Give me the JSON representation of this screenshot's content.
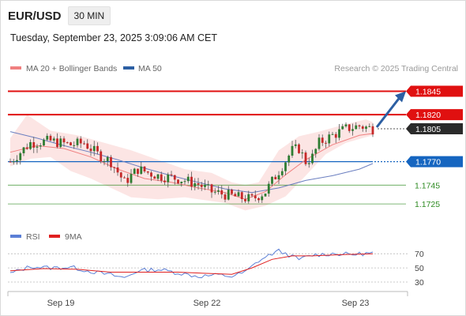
{
  "header": {
    "symbol": "EUR/USD",
    "timeframe": "30 MIN",
    "datetime": "Tuesday, September 23, 2025 3:09:06 AM CET"
  },
  "legend": {
    "ma20_label": "MA 20 + Bollinger Bands",
    "ma20_color": "#f08080",
    "ma50_label": "MA 50",
    "ma50_color": "#2c5fa3",
    "source": "Research © 2025 Trading Central"
  },
  "rsi_legend": {
    "rsi_label": "RSI",
    "rsi_color": "#5b7fd6",
    "ma9_label": "9MA",
    "ma9_color": "#e02020"
  },
  "x_axis": {
    "labels": [
      "Sep 19",
      "Sep 22",
      "Sep 23"
    ]
  },
  "chart_data": {
    "type": "candlestick",
    "price_range": [
      1.1715,
      1.1858
    ],
    "rsi_range": [
      20,
      78
    ],
    "levels": [
      {
        "value": 1.1845,
        "label": "1.1845",
        "kind": "resistance",
        "style": "red-thick",
        "color": "#e01010"
      },
      {
        "value": 1.182,
        "label": "1.1820",
        "kind": "resistance",
        "style": "red-thick",
        "color": "#e01010"
      },
      {
        "value": 1.1805,
        "label": "1.1805",
        "kind": "last",
        "style": "dotted",
        "color": "#222222"
      },
      {
        "value": 1.177,
        "label": "1.1770",
        "kind": "pivot",
        "style": "blue",
        "color": "#1565c0"
      },
      {
        "value": 1.1745,
        "label": "1.1745",
        "kind": "support",
        "style": "green-thin",
        "color": "#2e8b22"
      },
      {
        "value": 1.1725,
        "label": "1.1725",
        "kind": "support",
        "style": "green-thin",
        "color": "#2e8b22"
      }
    ],
    "rsi_levels": [
      70,
      50,
      30
    ],
    "arrow": {
      "from": 1.1805,
      "to": 1.1845,
      "color": "#2c5fa3"
    },
    "anchors": [
      [
        0,
        1.177
      ],
      [
        6,
        1.179
      ],
      [
        12,
        1.1792
      ],
      [
        18,
        1.1788
      ],
      [
        22,
        1.179
      ],
      [
        26,
        1.1778
      ],
      [
        30,
        1.177
      ],
      [
        34,
        1.1748
      ],
      [
        38,
        1.1762
      ],
      [
        44,
        1.1755
      ],
      [
        50,
        1.1752
      ],
      [
        56,
        1.1746
      ],
      [
        60,
        1.1738
      ],
      [
        64,
        1.1735
      ],
      [
        68,
        1.1732
      ],
      [
        72,
        1.173
      ],
      [
        76,
        1.1738
      ],
      [
        80,
        1.176
      ],
      [
        84,
        1.1782
      ],
      [
        86,
        1.1784
      ],
      [
        88,
        1.177
      ],
      [
        90,
        1.1775
      ],
      [
        92,
        1.179
      ],
      [
        96,
        1.1798
      ],
      [
        100,
        1.1805
      ],
      [
        104,
        1.1808
      ],
      [
        108,
        1.1805
      ]
    ],
    "bb_upper": [
      [
        0,
        1.1795
      ],
      [
        5,
        1.182
      ],
      [
        12,
        1.1803
      ],
      [
        20,
        1.1798
      ],
      [
        28,
        1.179
      ],
      [
        36,
        1.1782
      ],
      [
        44,
        1.1772
      ],
      [
        52,
        1.1762
      ],
      [
        60,
        1.1758
      ],
      [
        66,
        1.1748
      ],
      [
        70,
        1.1745
      ],
      [
        74,
        1.1748
      ],
      [
        80,
        1.1782
      ],
      [
        86,
        1.1797
      ],
      [
        92,
        1.1802
      ],
      [
        100,
        1.181
      ],
      [
        106,
        1.1815
      ],
      [
        108,
        1.1812
      ]
    ],
    "bb_lower": [
      [
        0,
        1.1765
      ],
      [
        6,
        1.1773
      ],
      [
        12,
        1.1775
      ],
      [
        18,
        1.176
      ],
      [
        24,
        1.1752
      ],
      [
        30,
        1.1742
      ],
      [
        36,
        1.1732
      ],
      [
        44,
        1.173
      ],
      [
        52,
        1.1732
      ],
      [
        58,
        1.1729
      ],
      [
        64,
        1.1726
      ],
      [
        70,
        1.1718
      ],
      [
        76,
        1.1723
      ],
      [
        82,
        1.1733
      ],
      [
        88,
        1.1755
      ],
      [
        94,
        1.1778
      ],
      [
        100,
        1.179
      ],
      [
        108,
        1.1798
      ]
    ],
    "ma20": [
      [
        0,
        1.178
      ],
      [
        8,
        1.1787
      ],
      [
        16,
        1.1784
      ],
      [
        24,
        1.1775
      ],
      [
        32,
        1.1762
      ],
      [
        40,
        1.1752
      ],
      [
        48,
        1.1748
      ],
      [
        56,
        1.1742
      ],
      [
        64,
        1.1737
      ],
      [
        70,
        1.173
      ],
      [
        76,
        1.1738
      ],
      [
        82,
        1.1756
      ],
      [
        88,
        1.1772
      ],
      [
        96,
        1.1788
      ],
      [
        104,
        1.1798
      ],
      [
        108,
        1.18
      ]
    ],
    "ma50": [
      [
        0,
        1.1802
      ],
      [
        8,
        1.1795
      ],
      [
        16,
        1.1787
      ],
      [
        24,
        1.178
      ],
      [
        32,
        1.1772
      ],
      [
        40,
        1.1763
      ],
      [
        48,
        1.1755
      ],
      [
        56,
        1.1748
      ],
      [
        64,
        1.1741
      ],
      [
        72,
        1.1737
      ],
      [
        80,
        1.1742
      ],
      [
        88,
        1.175
      ],
      [
        96,
        1.1755
      ],
      [
        104,
        1.1762
      ],
      [
        108,
        1.1768
      ]
    ],
    "rsi_anchors": [
      [
        0,
        42
      ],
      [
        6,
        52
      ],
      [
        12,
        50
      ],
      [
        18,
        51
      ],
      [
        24,
        45
      ],
      [
        30,
        40
      ],
      [
        34,
        36
      ],
      [
        38,
        46
      ],
      [
        44,
        48
      ],
      [
        50,
        43
      ],
      [
        56,
        38
      ],
      [
        62,
        40
      ],
      [
        66,
        38
      ],
      [
        70,
        44
      ],
      [
        74,
        60
      ],
      [
        78,
        70
      ],
      [
        80,
        74
      ],
      [
        84,
        66
      ],
      [
        86,
        62
      ],
      [
        90,
        68
      ],
      [
        96,
        70
      ],
      [
        102,
        69
      ],
      [
        108,
        71
      ]
    ],
    "rsi_ma9": [
      [
        0,
        46
      ],
      [
        10,
        49
      ],
      [
        20,
        48
      ],
      [
        30,
        44
      ],
      [
        40,
        44
      ],
      [
        50,
        44
      ],
      [
        60,
        42
      ],
      [
        66,
        41
      ],
      [
        72,
        50
      ],
      [
        78,
        62
      ],
      [
        84,
        67
      ],
      [
        90,
        67
      ],
      [
        100,
        69
      ],
      [
        108,
        70
      ]
    ]
  }
}
